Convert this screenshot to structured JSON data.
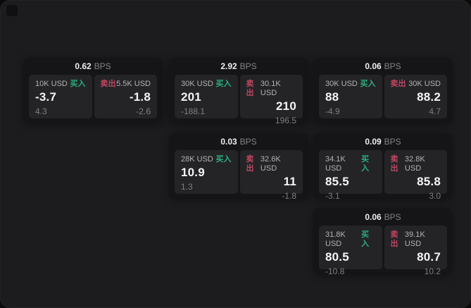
{
  "labels": {
    "bps_unit": "BPS",
    "buy": "买入",
    "sell": "卖出"
  },
  "colors": {
    "buy_green": "#2eae7d",
    "sell_red": "#bf4660",
    "window_bg": "#1c1c1e",
    "card_bg": "#151517",
    "panel_bg": "#242427"
  },
  "cards": [
    {
      "bps": "0.62",
      "buy": {
        "amount": "10K USD",
        "value": "-3.7",
        "sub": "4.3"
      },
      "sell": {
        "amount": "5.5K USD",
        "value": "-1.8",
        "sub": "-2.6"
      }
    },
    {
      "bps": "2.92",
      "buy": {
        "amount": "30K USD",
        "value": "201",
        "sub": "-188.1"
      },
      "sell": {
        "amount": "30.1K USD",
        "value": "210",
        "sub": "196.5"
      }
    },
    {
      "bps": "0.03",
      "buy": {
        "amount": "28K USD",
        "value": "10.9",
        "sub": "1.3"
      },
      "sell": {
        "amount": "32.6K USD",
        "value": "11",
        "sub": "-1.8"
      }
    },
    {
      "bps": "0.06",
      "buy": {
        "amount": "30K USD",
        "value": "88",
        "sub": "-4.9"
      },
      "sell": {
        "amount": "30K USD",
        "value": "88.2",
        "sub": "4.7"
      }
    },
    {
      "bps": "0.09",
      "buy": {
        "amount": "34.1K USD",
        "value": "85.5",
        "sub": "-3.1"
      },
      "sell": {
        "amount": "32.8K USD",
        "value": "85.8",
        "sub": "3.0"
      }
    },
    {
      "bps": "0.06",
      "buy": {
        "amount": "31.8K USD",
        "value": "80.5",
        "sub": "-10.8"
      },
      "sell": {
        "amount": "39.1K USD",
        "value": "80.7",
        "sub": "10.2"
      }
    }
  ]
}
